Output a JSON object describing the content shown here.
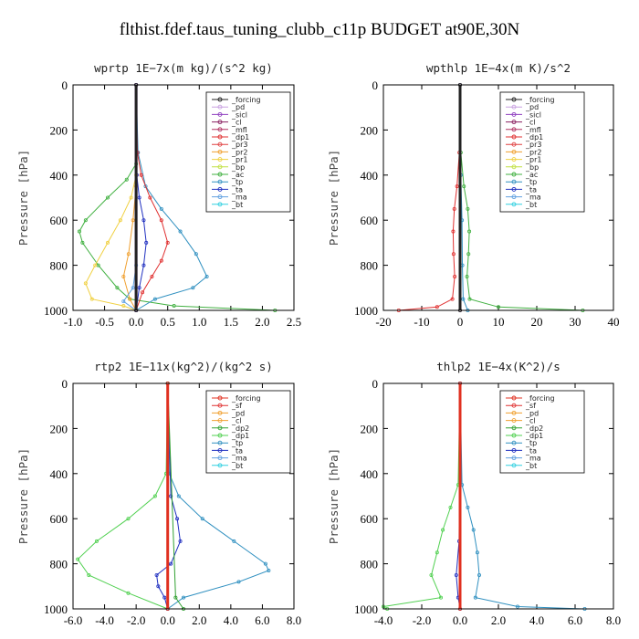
{
  "title": "flthist.fdef.taus_tuning_clubb_c11p  BUDGET at90E,30N",
  "colors": {
    "forcing": "#222222",
    "pd": "#c8a0e0",
    "sicl": "#9040c0",
    "cl": "#8a2060",
    "mfl": "#b03060",
    "dp1": "#e03030",
    "pr3": "#e04040",
    "pr2": "#f0a030",
    "pr1": "#f0d040",
    "bp": "#c0e040",
    "ac": "#40b040",
    "tp": "#3090c0",
    "ta": "#2030c0",
    "ma": "#60a0e0",
    "bt": "#30d0e0",
    "sf": "#e03020",
    "dp2": "#30a030",
    "dp1g": "#50d050"
  },
  "chart_data": [
    {
      "type": "line",
      "title": "wprtp  1E−7x(m kg)/(s^2 kg)",
      "ylabel": "Pressure [hPa]",
      "xlim": [
        -1.0,
        2.5
      ],
      "ylim": [
        1000,
        0
      ],
      "xticks": [
        "-1.0",
        "-0.5",
        "0.0",
        "0.5",
        "1.0",
        "1.5",
        "2.0",
        "2.5"
      ],
      "xtick_values": [
        -1.0,
        -0.5,
        0.0,
        0.5,
        1.0,
        1.5,
        2.0,
        2.5
      ],
      "yticks": [
        0,
        200,
        400,
        600,
        800,
        1000
      ],
      "legend": [
        "_forcing",
        "_pd",
        "_sicl",
        "_cl",
        "_mfl",
        "_dp1",
        "_pr3",
        "_pr2",
        "_pr1",
        "_bp",
        "_ac",
        "_tp",
        "_ta",
        "_ma",
        "_bt"
      ],
      "legend_colors": [
        "forcing",
        "pd",
        "sicl",
        "cl",
        "mfl",
        "dp1",
        "pr3",
        "pr2",
        "pr1",
        "bp",
        "ac",
        "tp",
        "ta",
        "ma",
        "bt"
      ],
      "series": [
        {
          "key": "ac",
          "p": [
            0,
            350,
            420,
            500,
            600,
            650,
            700,
            800,
            900,
            950,
            980,
            1000
          ],
          "x": [
            0,
            0,
            -0.15,
            -0.45,
            -0.8,
            -0.9,
            -0.85,
            -0.6,
            -0.3,
            -0.1,
            0.6,
            2.2
          ]
        },
        {
          "key": "pr1",
          "p": [
            0,
            400,
            500,
            600,
            700,
            800,
            880,
            950,
            980,
            1000
          ],
          "x": [
            0,
            0,
            -0.08,
            -0.25,
            -0.45,
            -0.65,
            -0.8,
            -0.7,
            -0.2,
            0
          ]
        },
        {
          "key": "pr2",
          "p": [
            0,
            450,
            600,
            750,
            850,
            950,
            1000
          ],
          "x": [
            0,
            0,
            -0.05,
            -0.12,
            -0.2,
            -0.1,
            0
          ]
        },
        {
          "key": "tp",
          "p": [
            0,
            300,
            450,
            550,
            650,
            750,
            850,
            900,
            950,
            1000
          ],
          "x": [
            0,
            0.03,
            0.15,
            0.4,
            0.7,
            0.95,
            1.12,
            0.9,
            0.3,
            0
          ]
        },
        {
          "key": "dp1",
          "p": [
            0,
            300,
            400,
            500,
            600,
            700,
            780,
            850,
            920,
            1000
          ],
          "x": [
            0,
            0.02,
            0.08,
            0.22,
            0.4,
            0.5,
            0.4,
            0.25,
            0.1,
            0
          ]
        },
        {
          "key": "ta",
          "p": [
            0,
            400,
            500,
            600,
            700,
            800,
            900,
            1000
          ],
          "x": [
            0,
            0.01,
            0.05,
            0.12,
            0.16,
            0.12,
            0.05,
            0
          ]
        },
        {
          "key": "ma",
          "p": [
            0,
            800,
            900,
            960,
            1000
          ],
          "x": [
            0,
            0,
            -0.05,
            -0.2,
            0
          ]
        },
        {
          "key": "sicl",
          "p": [
            0,
            1000
          ],
          "x": [
            0,
            0
          ]
        },
        {
          "key": "forcing",
          "p": [
            0,
            1000
          ],
          "x": [
            0,
            0
          ]
        }
      ]
    },
    {
      "type": "line",
      "title": "wpthlp  1E−4x(m K)/s^2",
      "ylabel": "Pressure [hPa]",
      "xlim": [
        -20,
        40
      ],
      "ylim": [
        1000,
        0
      ],
      "xticks": [
        "-20",
        "-10",
        "0",
        "10",
        "20",
        "30",
        "40"
      ],
      "xtick_values": [
        -20,
        -10,
        0,
        10,
        20,
        30,
        40
      ],
      "yticks": [
        0,
        200,
        400,
        600,
        800,
        1000
      ],
      "legend": [
        "_forcing",
        "_pd",
        "_sicl",
        "_cl",
        "_mfl",
        "_dp1",
        "_pr3",
        "_pr2",
        "_pr1",
        "_bp",
        "_ac",
        "_tp",
        "_ta",
        "_ma",
        "_bt"
      ],
      "legend_colors": [
        "forcing",
        "pd",
        "sicl",
        "cl",
        "mfl",
        "dp1",
        "pr3",
        "pr2",
        "pr1",
        "bp",
        "ac",
        "tp",
        "ta",
        "ma",
        "bt"
      ],
      "series": [
        {
          "key": "ac",
          "p": [
            0,
            300,
            450,
            550,
            650,
            750,
            850,
            950,
            985,
            1000
          ],
          "x": [
            0,
            0.2,
            1,
            2,
            2.4,
            2.2,
            1.8,
            2.5,
            10,
            32
          ]
        },
        {
          "key": "dp1",
          "p": [
            0,
            300,
            450,
            550,
            650,
            750,
            850,
            950,
            985,
            1000
          ],
          "x": [
            0,
            -0.2,
            -0.8,
            -1.5,
            -1.8,
            -1.7,
            -1.4,
            -2,
            -6,
            -16
          ]
        },
        {
          "key": "tp",
          "p": [
            0,
            400,
            600,
            800,
            950,
            1000
          ],
          "x": [
            0,
            0.2,
            0.5,
            0.6,
            0.8,
            2
          ]
        },
        {
          "key": "pd",
          "p": [
            0,
            1000
          ],
          "x": [
            0,
            0
          ]
        },
        {
          "key": "forcing",
          "p": [
            0,
            1000
          ],
          "x": [
            0,
            0
          ]
        }
      ]
    },
    {
      "type": "line",
      "title": "rtp2  1E−11x(kg^2)/(kg^2 s)",
      "ylabel": "Pressure [hPa]",
      "xlim": [
        -6.0,
        8.0
      ],
      "ylim": [
        1000,
        0
      ],
      "xticks": [
        "-6.0",
        "-4.0",
        "-2.0",
        "0.0",
        "2.0",
        "4.0",
        "6.0",
        "8.0"
      ],
      "xtick_values": [
        -6,
        -4,
        -2,
        0,
        2,
        4,
        6,
        8
      ],
      "yticks": [
        0,
        200,
        400,
        600,
        800,
        1000
      ],
      "legend": [
        "_forcing",
        "_sf",
        "_pd",
        "_cl",
        "_dp2",
        "_dp1",
        "_tp",
        "_ta",
        "_ma",
        "_bt"
      ],
      "legend_colors": [
        "sf",
        "dp1",
        "pr2",
        "pr2",
        "dp2",
        "dp1g",
        "tp",
        "ta",
        "ma",
        "bt"
      ],
      "series": [
        {
          "key": "dp1g",
          "p": [
            0,
            400,
            500,
            600,
            700,
            780,
            850,
            930,
            1000
          ],
          "x": [
            0,
            -0.1,
            -0.8,
            -2.5,
            -4.5,
            -5.7,
            -5,
            -2.5,
            0
          ]
        },
        {
          "key": "tp",
          "p": [
            0,
            400,
            500,
            600,
            700,
            800,
            830,
            880,
            950,
            1000
          ],
          "x": [
            0,
            0.1,
            0.7,
            2.2,
            4.2,
            6.2,
            6.4,
            4.5,
            1,
            0
          ]
        },
        {
          "key": "ta",
          "p": [
            0,
            500,
            600,
            700,
            800,
            850,
            900,
            950,
            1000
          ],
          "x": [
            0,
            0.2,
            0.6,
            0.8,
            0.2,
            -0.7,
            -0.6,
            -0.2,
            0
          ]
        },
        {
          "key": "dp2",
          "p": [
            0,
            950,
            1000
          ],
          "x": [
            0,
            0.5,
            1
          ]
        },
        {
          "key": "sf",
          "p": [
            0,
            1000
          ],
          "x": [
            0,
            0
          ]
        }
      ]
    },
    {
      "type": "line",
      "title": "thlp2  1E−4x(K^2)/s",
      "ylabel": "Pressure [hPa]",
      "xlim": [
        -4.0,
        8.0
      ],
      "ylim": [
        1000,
        0
      ],
      "xticks": [
        "-4.0",
        "-2.0",
        "0.0",
        "2.0",
        "4.0",
        "6.0",
        "8.0"
      ],
      "xtick_values": [
        -4,
        -2,
        0,
        2,
        4,
        6,
        8
      ],
      "yticks": [
        0,
        200,
        400,
        600,
        800,
        1000
      ],
      "legend": [
        "_forcing",
        "_sf",
        "_pd",
        "_cl",
        "_dp2",
        "_dp1",
        "_tp",
        "_ta",
        "_ma",
        "_bt"
      ],
      "legend_colors": [
        "sf",
        "dp1",
        "pr2",
        "pr2",
        "dp2",
        "dp1g",
        "tp",
        "ta",
        "ma",
        "bt"
      ],
      "series": [
        {
          "key": "dp1g",
          "p": [
            0,
            450,
            550,
            650,
            750,
            850,
            950,
            990,
            1000
          ],
          "x": [
            0,
            -0.1,
            -0.5,
            -0.9,
            -1.2,
            -1.5,
            -1,
            -4,
            -3.8
          ]
        },
        {
          "key": "tp",
          "p": [
            0,
            450,
            550,
            650,
            750,
            850,
            950,
            990,
            1000
          ],
          "x": [
            0,
            0.1,
            0.4,
            0.7,
            0.9,
            1.0,
            0.8,
            3,
            6.5
          ]
        },
        {
          "key": "ta",
          "p": [
            0,
            700,
            850,
            950,
            1000
          ],
          "x": [
            0,
            -0.05,
            -0.2,
            -0.1,
            0
          ]
        },
        {
          "key": "sf",
          "p": [
            0,
            1000
          ],
          "x": [
            0,
            0
          ]
        }
      ]
    }
  ]
}
